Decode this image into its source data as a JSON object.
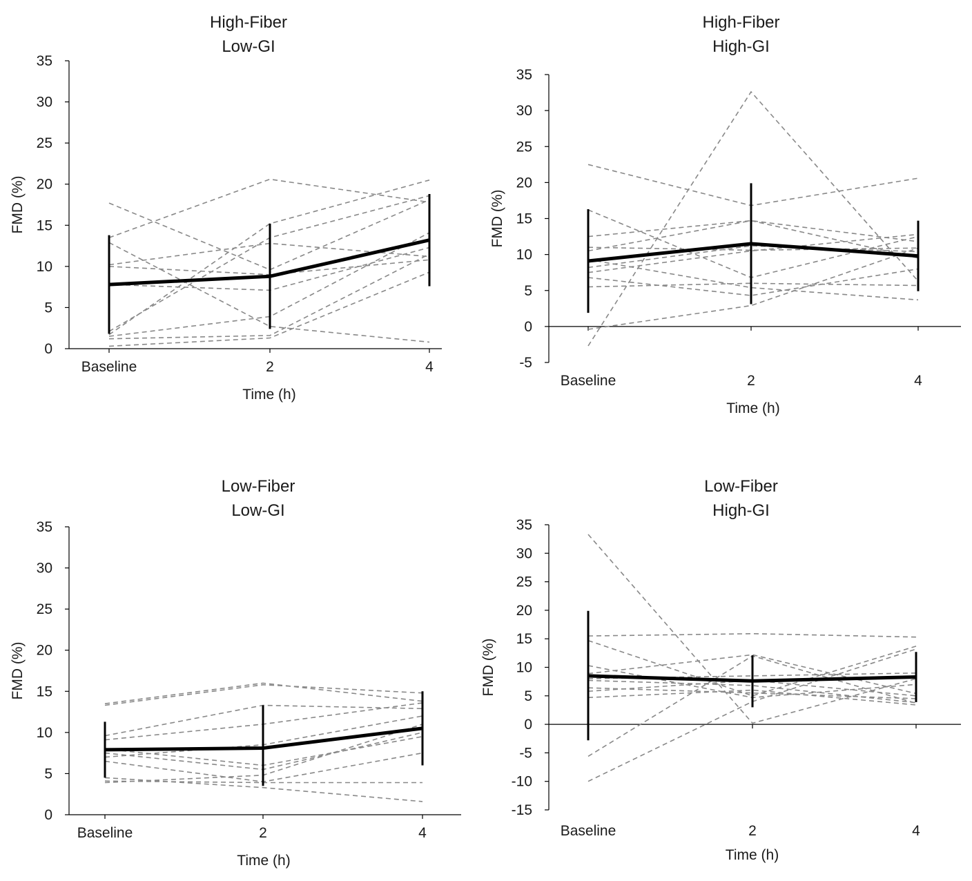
{
  "figure": {
    "background": "#ffffff",
    "axis_color": "#000000",
    "subject_color": "#888888",
    "mean_color": "#000000"
  },
  "chart_data": [
    {
      "type": "line",
      "title": [
        "High-Fiber",
        "Low-GI"
      ],
      "xlabel": "Time (h)",
      "ylabel": "FMD (%)",
      "categories": [
        "Baseline",
        "2",
        "4"
      ],
      "ylim": [
        0,
        35
      ],
      "yticks": [
        0,
        5,
        10,
        15,
        20,
        25,
        30,
        35
      ],
      "zero_line": false,
      "mean": {
        "values": [
          7.8,
          8.8,
          13.2
        ],
        "sd_upper": [
          13.8,
          15.2,
          18.8
        ],
        "sd_lower": [
          1.8,
          2.4,
          7.6
        ]
      },
      "subjects": [
        [
          17.7,
          9.6,
          18.1
        ],
        [
          13.5,
          20.6,
          17.8
        ],
        [
          12.9,
          2.7,
          0.8
        ],
        [
          10.2,
          12.8,
          11.2
        ],
        [
          10.0,
          9.0,
          10.8
        ],
        [
          7.8,
          7.1,
          12.3
        ],
        [
          1.7,
          15.2,
          20.5
        ],
        [
          1.5,
          3.9,
          14.1
        ],
        [
          1.2,
          1.6,
          11.5
        ],
        [
          0.3,
          1.3,
          9.3
        ],
        [
          2.1,
          13.5,
          18.6
        ]
      ]
    },
    {
      "type": "line",
      "title": [
        "High-Fiber",
        "High-GI"
      ],
      "xlabel": "Time (h)",
      "ylabel": "FMD (%)",
      "categories": [
        "Baseline",
        "2",
        "4"
      ],
      "ylim": [
        -5,
        35
      ],
      "yticks": [
        -5,
        0,
        5,
        10,
        15,
        20,
        25,
        30,
        35
      ],
      "zero_line": true,
      "mean": {
        "values": [
          9.1,
          11.5,
          9.8
        ],
        "sd_upper": [
          16.3,
          19.9,
          14.7
        ],
        "sd_lower": [
          1.9,
          3.1,
          4.9
        ]
      },
      "subjects": [
        [
          22.5,
          16.8,
          20.6
        ],
        [
          -2.7,
          32.6,
          6.3
        ],
        [
          16.2,
          6.8,
          12.5
        ],
        [
          12.5,
          14.7,
          11.8
        ],
        [
          11.0,
          10.6,
          10.9
        ],
        [
          10.5,
          14.7,
          9.5
        ],
        [
          9.3,
          5.4,
          3.7
        ],
        [
          8.2,
          11.2,
          10.4
        ],
        [
          6.8,
          4.3,
          8.0
        ],
        [
          5.5,
          6.0,
          5.7
        ],
        [
          -0.4,
          2.9,
          10.9
        ],
        [
          7.5,
          10.5,
          12.8
        ]
      ]
    },
    {
      "type": "line",
      "title": [
        "Low-Fiber",
        "Low-GI"
      ],
      "xlabel": "Time (h)",
      "ylabel": "FMD (%)",
      "categories": [
        "Baseline",
        "2",
        "4"
      ],
      "ylim": [
        0,
        35
      ],
      "yticks": [
        0,
        5,
        10,
        15,
        20,
        25,
        30,
        35
      ],
      "zero_line": false,
      "mean": {
        "values": [
          7.9,
          8.1,
          10.5
        ],
        "sd_upper": [
          11.3,
          13.3,
          15.0
        ],
        "sd_lower": [
          4.5,
          3.5,
          6.0
        ]
      },
      "subjects": [
        [
          13.5,
          16.0,
          13.8
        ],
        [
          13.3,
          15.8,
          14.8
        ],
        [
          9.6,
          13.3,
          12.9
        ],
        [
          9.1,
          11.0,
          13.6
        ],
        [
          7.5,
          5.5,
          10.0
        ],
        [
          6.5,
          4.0,
          7.5
        ],
        [
          4.5,
          3.3,
          1.6
        ],
        [
          4.1,
          3.9,
          3.9
        ],
        [
          3.9,
          4.8,
          11.0
        ],
        [
          8.0,
          6.0,
          9.5
        ],
        [
          7.0,
          8.5,
          12.0
        ]
      ]
    },
    {
      "type": "line",
      "title": [
        "Low-Fiber",
        "High-GI"
      ],
      "xlabel": "Time (h)",
      "ylabel": "FMD (%)",
      "categories": [
        "Baseline",
        "2",
        "4"
      ],
      "ylim": [
        -15,
        35
      ],
      "yticks": [
        -15,
        -10,
        -5,
        0,
        5,
        10,
        15,
        20,
        25,
        30,
        35
      ],
      "zero_line": true,
      "mean": {
        "values": [
          8.5,
          7.6,
          8.3
        ],
        "sd_upper": [
          19.9,
          12.1,
          12.7
        ],
        "sd_lower": [
          -2.8,
          3.0,
          3.9
        ]
      },
      "subjects": [
        [
          33.3,
          0.2,
          8.0
        ],
        [
          15.5,
          15.9,
          15.3
        ],
        [
          14.7,
          5.0,
          13.7
        ],
        [
          10.3,
          4.7,
          7.0
        ],
        [
          8.9,
          12.2,
          5.4
        ],
        [
          7.7,
          6.8,
          3.8
        ],
        [
          6.4,
          5.5,
          4.5
        ],
        [
          5.8,
          7.7,
          5.0
        ],
        [
          4.7,
          6.0,
          3.4
        ],
        [
          -5.6,
          12.0,
          3.7
        ],
        [
          -10.0,
          4.0,
          13.2
        ],
        [
          8.0,
          8.5,
          9.0
        ]
      ]
    }
  ]
}
